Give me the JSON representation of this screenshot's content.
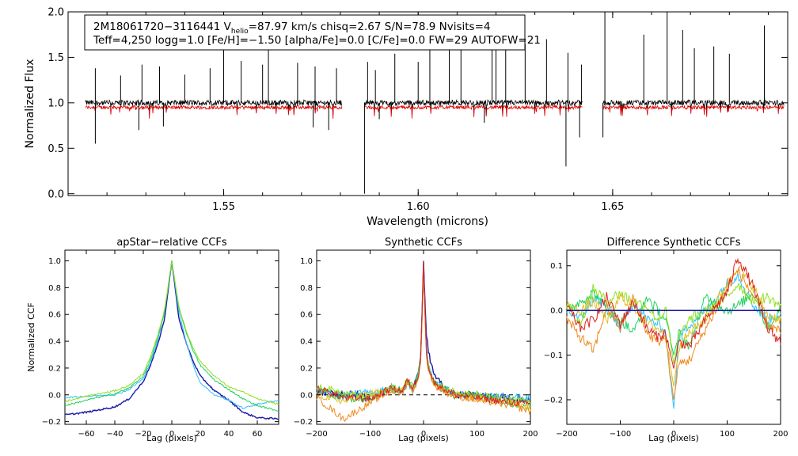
{
  "figure": {
    "info_line1": "2M18061720−3116441  V",
    "vhelio_sub": "helio",
    "vhelio_rest": "=87.97 km/s  chisq=2.67  S/N=78.9  Nvisits=4",
    "info_line2": "Teff=4,250 logg=1.0 [Fe/H]=−1.50 [alpha/Fe]=0.0 [C/Fe]=0.0 FW=29 AUTOFW=21"
  },
  "colors": {
    "spectrum_observed": "#000000",
    "spectrum_model": "#e00000",
    "series": [
      "#1a1aa8",
      "#30c0ff",
      "#20d060",
      "#90e020",
      "#e0c020",
      "#f08a20",
      "#e02020"
    ]
  },
  "chart_data": [
    {
      "type": "line",
      "name": "spectrum",
      "title": "",
      "xlabel": "Wavelength (microns)",
      "ylabel": "Normalized Flux",
      "xlim": [
        1.51,
        1.695
      ],
      "ylim": [
        -0.02,
        2.0
      ],
      "xticks": [
        1.55,
        1.6,
        1.65
      ],
      "xtick_labels": [
        "1.55",
        "1.60",
        "1.65"
      ],
      "yticks": [
        0.0,
        0.5,
        1.0,
        1.5,
        2.0
      ],
      "ytick_labels": [
        "0.0",
        "0.5",
        "1.0",
        "1.5",
        "2.0"
      ],
      "chips": [
        [
          1.5145,
          1.5804
        ],
        [
          1.5862,
          1.6422
        ],
        [
          1.6475,
          1.694
        ]
      ],
      "continuum": 1.0,
      "model_level": 0.95,
      "emission_lines": [
        1.517,
        1.5235,
        1.529,
        1.5335,
        1.54,
        1.5465,
        1.55,
        1.5545,
        1.56,
        1.5615,
        1.569,
        1.5735,
        1.579,
        1.587,
        1.589,
        1.594,
        1.6,
        1.603,
        1.608,
        1.611,
        1.619,
        1.62,
        1.6225,
        1.6275,
        1.633,
        1.6385,
        1.642,
        1.648,
        1.658,
        1.664,
        1.668,
        1.671,
        1.676,
        1.68,
        1.689
      ],
      "emission_peaks": [
        1.38,
        1.3,
        1.42,
        1.4,
        1.31,
        1.38,
        1.62,
        1.46,
        1.42,
        1.88,
        1.44,
        1.4,
        1.38,
        1.45,
        1.36,
        1.54,
        1.45,
        1.58,
        1.68,
        1.72,
        1.95,
        1.6,
        1.85,
        1.65,
        1.7,
        1.55,
        1.42,
        2.0,
        1.75,
        2.0,
        1.8,
        1.6,
        1.62,
        1.54,
        1.85
      ],
      "absorption_lines": [
        1.517,
        1.5282,
        1.5345,
        1.573,
        1.577,
        1.5862,
        1.59,
        1.617,
        1.638,
        1.6415,
        1.6475
      ],
      "absorption_depths": [
        0.55,
        0.7,
        0.74,
        0.73,
        0.7,
        0.0,
        0.82,
        0.78,
        0.3,
        0.62,
        0.62
      ]
    },
    {
      "type": "line",
      "name": "apstar-ccf",
      "title": "apStar−relative CCFs",
      "xlabel": "Lag (pixels)",
      "ylabel": "Normalized CCF",
      "xlim": [
        -75,
        75
      ],
      "ylim": [
        -0.22,
        1.08
      ],
      "xticks": [
        -60,
        -40,
        -20,
        0,
        20,
        40,
        60
      ],
      "xtick_labels": [
        "−60",
        "−40",
        "−20",
        "0",
        "20",
        "40",
        "60"
      ],
      "yticks": [
        -0.2,
        0.0,
        0.2,
        0.4,
        0.6,
        0.8,
        1.0
      ],
      "ytick_labels": [
        "−0.2",
        "0.0",
        "0.2",
        "0.4",
        "0.6",
        "0.8",
        "1.0"
      ],
      "series": [
        {
          "name": "visit-1",
          "color_index": 0,
          "width": 1.4,
          "x": [
            -75,
            -60,
            -40,
            -30,
            -20,
            -15,
            -10,
            -5,
            0,
            5,
            10,
            15,
            20,
            30,
            40,
            50,
            60,
            75
          ],
          "y": [
            -0.15,
            -0.13,
            -0.09,
            -0.03,
            0.1,
            0.22,
            0.37,
            0.57,
            1.0,
            0.57,
            0.39,
            0.25,
            0.14,
            0.03,
            -0.04,
            -0.13,
            -0.17,
            -0.18
          ]
        },
        {
          "name": "visit-2",
          "color_index": 1,
          "width": 1.0,
          "x": [
            -75,
            -60,
            -40,
            -30,
            -20,
            -15,
            -10,
            -5,
            0,
            5,
            10,
            15,
            20,
            30,
            40,
            50,
            60,
            75
          ],
          "y": [
            -0.02,
            -0.01,
            0.0,
            0.04,
            0.12,
            0.24,
            0.4,
            0.62,
            1.0,
            0.62,
            0.4,
            0.22,
            0.09,
            0.0,
            -0.04,
            -0.1,
            -0.07,
            -0.04
          ]
        },
        {
          "name": "visit-3",
          "color_index": 2,
          "width": 1.0,
          "x": [
            -75,
            -60,
            -40,
            -30,
            -20,
            -15,
            -10,
            -5,
            0,
            5,
            10,
            15,
            20,
            30,
            40,
            50,
            60,
            75
          ],
          "y": [
            -0.08,
            -0.04,
            0.01,
            0.05,
            0.14,
            0.26,
            0.42,
            0.62,
            1.0,
            0.65,
            0.47,
            0.33,
            0.22,
            0.11,
            0.04,
            -0.03,
            -0.08,
            -0.12
          ]
        },
        {
          "name": "visit-4",
          "color_index": 3,
          "width": 1.0,
          "x": [
            -75,
            -60,
            -40,
            -30,
            -20,
            -15,
            -10,
            -5,
            0,
            5,
            10,
            15,
            20,
            30,
            40,
            50,
            60,
            75
          ],
          "y": [
            -0.05,
            -0.01,
            0.03,
            0.07,
            0.16,
            0.28,
            0.44,
            0.64,
            1.0,
            0.66,
            0.48,
            0.35,
            0.25,
            0.14,
            0.06,
            0.02,
            -0.03,
            -0.07
          ]
        }
      ]
    },
    {
      "type": "line",
      "name": "synthetic-ccf",
      "title": "Synthetic CCFs",
      "xlabel": "Lag (pixels)",
      "ylabel": "",
      "xlim": [
        -200,
        200
      ],
      "ylim": [
        -0.22,
        1.08
      ],
      "xticks": [
        -200,
        -100,
        0,
        100,
        200
      ],
      "xtick_labels": [
        "−200",
        "−100",
        "0",
        "100",
        "200"
      ],
      "yticks": [
        -0.2,
        0.0,
        0.2,
        0.4,
        0.6,
        0.8,
        1.0
      ],
      "ytick_labels": [
        "−0.2",
        "0.0",
        "0.2",
        "0.4",
        "0.6",
        "0.8",
        "1.0"
      ],
      "zero_line": 0.0,
      "series": [
        {
          "name": "template-1",
          "color_index": 0,
          "width": 1.4,
          "x": [
            -200,
            -150,
            -100,
            -60,
            -40,
            -30,
            -20,
            -10,
            -5,
            0,
            5,
            10,
            20,
            40,
            60,
            100,
            150,
            200
          ],
          "y": [
            0.02,
            0.01,
            -0.01,
            0.05,
            0.02,
            0.1,
            0.05,
            0.15,
            0.3,
            1.0,
            0.45,
            0.3,
            0.15,
            0.05,
            0.0,
            0.0,
            -0.02,
            -0.04
          ]
        },
        {
          "name": "template-2",
          "color_index": 1,
          "width": 1.0,
          "x": [
            -200,
            -150,
            -100,
            -60,
            -40,
            -30,
            -20,
            -10,
            -5,
            0,
            5,
            10,
            20,
            40,
            60,
            100,
            150,
            200
          ],
          "y": [
            0.03,
            0.0,
            0.02,
            0.04,
            0.01,
            0.09,
            0.03,
            0.14,
            0.28,
            0.98,
            0.35,
            0.22,
            0.1,
            0.03,
            0.01,
            -0.02,
            0.0,
            -0.03
          ]
        },
        {
          "name": "template-3",
          "color_index": 2,
          "width": 1.0,
          "x": [
            -200,
            -150,
            -100,
            -60,
            -40,
            -30,
            -20,
            -10,
            -5,
            0,
            5,
            10,
            20,
            40,
            60,
            100,
            150,
            200
          ],
          "y": [
            0.04,
            -0.03,
            -0.04,
            0.06,
            0.03,
            0.12,
            0.06,
            0.16,
            0.3,
            0.95,
            0.32,
            0.18,
            0.08,
            0.06,
            -0.02,
            0.01,
            -0.06,
            -0.08
          ]
        },
        {
          "name": "template-4",
          "color_index": 3,
          "width": 1.0,
          "x": [
            -200,
            -150,
            -100,
            -60,
            -40,
            -30,
            -20,
            -10,
            -5,
            0,
            5,
            10,
            20,
            40,
            60,
            100,
            150,
            200
          ],
          "y": [
            0.06,
            0.02,
            -0.02,
            0.05,
            0.04,
            0.11,
            0.05,
            0.13,
            0.27,
            0.92,
            0.33,
            0.2,
            0.09,
            0.04,
            0.03,
            0.0,
            -0.03,
            -0.05
          ]
        },
        {
          "name": "template-5",
          "color_index": 4,
          "width": 1.0,
          "x": [
            -200,
            -150,
            -100,
            -60,
            -40,
            -30,
            -20,
            -10,
            -5,
            0,
            5,
            10,
            20,
            40,
            60,
            100,
            150,
            200
          ],
          "y": [
            0.0,
            -0.05,
            0.01,
            0.04,
            0.02,
            0.1,
            0.04,
            0.12,
            0.26,
            0.93,
            0.31,
            0.17,
            0.08,
            0.03,
            0.0,
            -0.03,
            -0.04,
            -0.1
          ]
        },
        {
          "name": "template-6",
          "color_index": 5,
          "width": 1.0,
          "x": [
            -200,
            -150,
            -100,
            -60,
            -40,
            -30,
            -20,
            -10,
            -5,
            0,
            5,
            10,
            20,
            40,
            60,
            100,
            150,
            200
          ],
          "y": [
            -0.02,
            -0.18,
            -0.06,
            0.03,
            0.01,
            0.09,
            0.03,
            0.12,
            0.25,
            0.97,
            0.3,
            0.18,
            0.07,
            0.02,
            -0.01,
            -0.04,
            -0.07,
            -0.12
          ]
        },
        {
          "name": "template-7",
          "color_index": 6,
          "width": 1.0,
          "x": [
            -200,
            -150,
            -100,
            -60,
            -40,
            -30,
            -20,
            -10,
            -5,
            0,
            5,
            10,
            20,
            40,
            60,
            100,
            150,
            200
          ],
          "y": [
            0.05,
            -0.02,
            -0.03,
            0.05,
            0.03,
            0.11,
            0.05,
            0.14,
            0.29,
            1.0,
            0.33,
            0.19,
            0.09,
            0.04,
            0.0,
            -0.02,
            -0.05,
            -0.07
          ]
        }
      ]
    },
    {
      "type": "line",
      "name": "difference-ccf",
      "title": "Difference Synthetic CCFs",
      "xlabel": "Lag (pixels)",
      "ylabel": "",
      "xlim": [
        -200,
        200
      ],
      "ylim": [
        -0.255,
        0.135
      ],
      "xticks": [
        -200,
        -100,
        0,
        100,
        200
      ],
      "xtick_labels": [
        "−200",
        "−100",
        "0",
        "100",
        "200"
      ],
      "yticks": [
        -0.2,
        -0.1,
        0.0,
        0.1
      ],
      "ytick_labels": [
        "−0.2",
        "−0.1",
        "0.0",
        "0.1"
      ],
      "zero_line": 0.0,
      "series": [
        {
          "name": "diff-1",
          "color_index": 0,
          "width": 1.6,
          "x": [
            -200,
            200
          ],
          "y": [
            0.0,
            0.0
          ]
        },
        {
          "name": "diff-2",
          "color_index": 1,
          "width": 1.0,
          "x": [
            -200,
            -175,
            -150,
            -125,
            -100,
            -75,
            -50,
            -30,
            -15,
            0,
            10,
            30,
            60,
            100,
            120,
            150,
            175,
            200
          ],
          "y": [
            0.0,
            -0.02,
            0.03,
            0.01,
            -0.04,
            0.02,
            -0.02,
            -0.03,
            -0.05,
            -0.22,
            -0.06,
            -0.03,
            0.0,
            0.06,
            0.08,
            0.01,
            -0.02,
            -0.01
          ]
        },
        {
          "name": "diff-3",
          "color_index": 2,
          "width": 1.0,
          "x": [
            -200,
            -175,
            -150,
            -125,
            -100,
            -75,
            -50,
            -30,
            -15,
            0,
            10,
            30,
            60,
            100,
            120,
            150,
            175,
            200
          ],
          "y": [
            0.0,
            0.02,
            0.04,
            0.0,
            -0.02,
            -0.05,
            0.03,
            0.0,
            -0.02,
            -0.1,
            -0.05,
            -0.08,
            0.03,
            0.0,
            0.01,
            0.04,
            -0.04,
            0.0
          ]
        },
        {
          "name": "diff-4",
          "color_index": 3,
          "width": 1.0,
          "x": [
            -200,
            -175,
            -150,
            -125,
            -100,
            -75,
            -50,
            -30,
            -15,
            0,
            10,
            30,
            60,
            100,
            120,
            150,
            175,
            200
          ],
          "y": [
            0.02,
            -0.03,
            0.05,
            0.02,
            0.04,
            0.02,
            0.01,
            -0.02,
            0.0,
            -0.12,
            -0.06,
            -0.02,
            0.0,
            0.03,
            0.06,
            0.02,
            0.03,
            0.01
          ]
        },
        {
          "name": "diff-5",
          "color_index": 4,
          "width": 1.0,
          "x": [
            -200,
            -175,
            -150,
            -125,
            -100,
            -75,
            -50,
            -30,
            -15,
            0,
            10,
            30,
            60,
            100,
            120,
            150,
            175,
            200
          ],
          "y": [
            0.01,
            0.0,
            0.02,
            -0.02,
            0.03,
            0.01,
            -0.03,
            -0.04,
            -0.06,
            -0.17,
            -0.08,
            -0.05,
            -0.02,
            0.06,
            0.1,
            0.05,
            -0.01,
            -0.02
          ]
        },
        {
          "name": "diff-6",
          "color_index": 5,
          "width": 1.0,
          "x": [
            -200,
            -175,
            -150,
            -125,
            -100,
            -75,
            -50,
            -30,
            -15,
            0,
            10,
            30,
            60,
            100,
            120,
            150,
            175,
            200
          ],
          "y": [
            -0.02,
            -0.06,
            -0.09,
            0.01,
            -0.04,
            0.03,
            -0.05,
            -0.07,
            -0.06,
            -0.2,
            -0.12,
            -0.11,
            -0.04,
            0.05,
            0.09,
            0.03,
            -0.03,
            -0.05
          ]
        },
        {
          "name": "diff-7",
          "color_index": 6,
          "width": 1.0,
          "x": [
            -200,
            -175,
            -150,
            -125,
            -100,
            -75,
            -50,
            -30,
            -15,
            0,
            10,
            30,
            60,
            100,
            120,
            150,
            175,
            200
          ],
          "y": [
            0.01,
            -0.04,
            -0.02,
            0.03,
            -0.03,
            0.02,
            -0.04,
            -0.06,
            -0.05,
            -0.13,
            -0.07,
            -0.08,
            -0.02,
            0.04,
            0.12,
            0.05,
            -0.04,
            -0.07
          ]
        }
      ]
    }
  ]
}
